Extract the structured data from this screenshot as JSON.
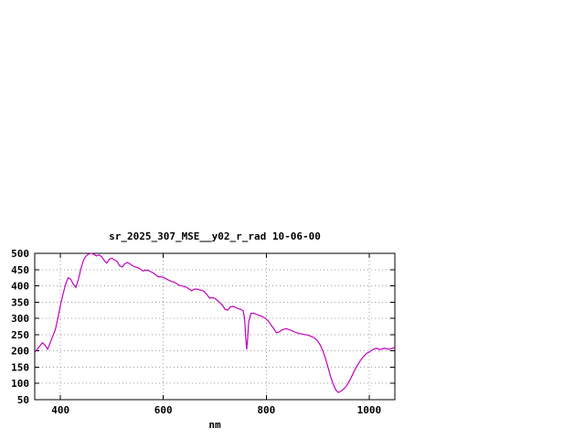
{
  "chart_data": {
    "type": "line",
    "title": "sr_2025_307_MSE__y02_r_rad 10-06-00",
    "xlabel": "nm",
    "ylabel": "",
    "xlim": [
      350,
      1050
    ],
    "ylim": [
      50,
      500
    ],
    "x_ticks": [
      400,
      600,
      800,
      1000
    ],
    "y_ticks": [
      50,
      100,
      150,
      200,
      250,
      300,
      350,
      400,
      450,
      500
    ],
    "grid": true,
    "legend": "none",
    "line_color": "#c000c0",
    "x": [
      350,
      355,
      360,
      365,
      370,
      375,
      380,
      385,
      390,
      395,
      400,
      405,
      410,
      415,
      420,
      425,
      430,
      435,
      440,
      445,
      450,
      455,
      460,
      465,
      470,
      475,
      480,
      485,
      490,
      495,
      500,
      505,
      510,
      515,
      520,
      525,
      530,
      535,
      540,
      545,
      550,
      555,
      560,
      565,
      570,
      575,
      580,
      585,
      590,
      595,
      600,
      605,
      610,
      615,
      620,
      625,
      630,
      635,
      640,
      645,
      650,
      655,
      660,
      665,
      670,
      675,
      680,
      685,
      690,
      695,
      700,
      705,
      710,
      715,
      720,
      725,
      730,
      735,
      740,
      745,
      750,
      755,
      758,
      760,
      762,
      764,
      766,
      770,
      775,
      780,
      785,
      790,
      795,
      800,
      805,
      810,
      815,
      820,
      825,
      830,
      835,
      840,
      845,
      850,
      855,
      860,
      865,
      870,
      875,
      880,
      885,
      890,
      895,
      900,
      905,
      910,
      915,
      920,
      925,
      930,
      935,
      940,
      945,
      950,
      955,
      960,
      965,
      970,
      975,
      980,
      985,
      990,
      995,
      1000,
      1005,
      1010,
      1015,
      1020,
      1025,
      1030,
      1035,
      1040,
      1045,
      1050
    ],
    "y": [
      195,
      205,
      215,
      225,
      218,
      205,
      225,
      245,
      265,
      300,
      340,
      375,
      405,
      425,
      420,
      405,
      395,
      420,
      455,
      480,
      492,
      498,
      500,
      497,
      492,
      495,
      490,
      478,
      470,
      482,
      485,
      480,
      475,
      462,
      458,
      468,
      472,
      468,
      462,
      458,
      456,
      452,
      446,
      448,
      448,
      444,
      440,
      434,
      428,
      428,
      426,
      422,
      418,
      414,
      412,
      408,
      402,
      400,
      398,
      396,
      390,
      385,
      390,
      390,
      388,
      386,
      382,
      372,
      362,
      364,
      362,
      355,
      348,
      340,
      328,
      325,
      335,
      337,
      334,
      330,
      328,
      324,
      300,
      240,
      205,
      240,
      290,
      315,
      316,
      313,
      310,
      307,
      303,
      298,
      290,
      278,
      268,
      256,
      258,
      264,
      267,
      268,
      265,
      262,
      258,
      255,
      253,
      252,
      250,
      249,
      246,
      243,
      238,
      230,
      218,
      200,
      178,
      150,
      122,
      98,
      80,
      72,
      76,
      82,
      90,
      103,
      118,
      135,
      150,
      163,
      175,
      184,
      192,
      197,
      202,
      206,
      208,
      204,
      206,
      208,
      206,
      205,
      208,
      211
    ]
  }
}
